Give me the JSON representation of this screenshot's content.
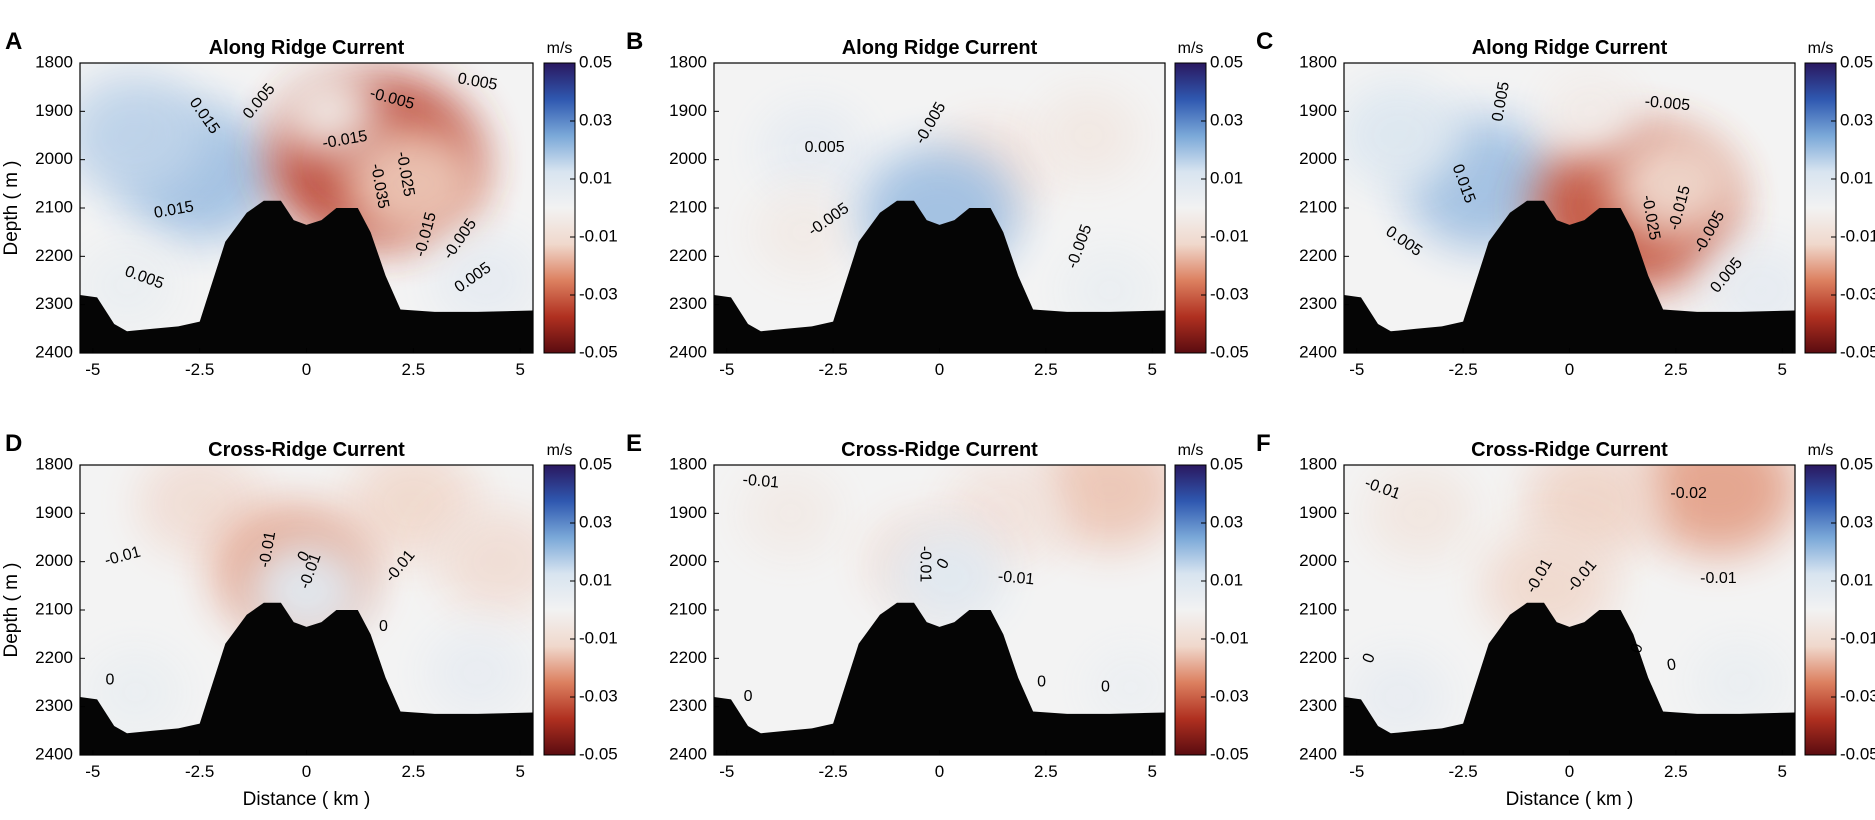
{
  "figure": {
    "colorbar_colors": [
      "#2a1860",
      "#2f58b0",
      "#7aa8d8",
      "#d8e4f0",
      "#f2f2f2",
      "#f0d8cc",
      "#dc8060",
      "#b03020",
      "#5a0c10"
    ],
    "terrain_color": "#050505"
  },
  "chart_data": [
    {
      "letter": "A",
      "type": "heatmap",
      "title": "Along Ridge Current",
      "xlabel": "",
      "ylabel": "Depth ( m )",
      "xlim": [
        -5.3,
        5.3
      ],
      "ylim": [
        2400,
        1800
      ],
      "x_ticks": [
        "-5",
        "-2.5",
        "0",
        "2.5",
        "5"
      ],
      "y_ticks": [
        "1800",
        "1900",
        "2000",
        "2100",
        "2200",
        "2300",
        "2400"
      ],
      "colorbar": {
        "unit": "m/s",
        "ticks": [
          "0.05",
          "0.03",
          "0.01",
          "-0.01",
          "-0.03",
          "-0.05"
        ]
      },
      "field": [
        {
          "x": -2.5,
          "y": 2030,
          "v": 0.02
        },
        {
          "x": -4.0,
          "y": 1950,
          "v": 0.016
        },
        {
          "x": -4.2,
          "y": 2260,
          "v": 0.004
        },
        {
          "x": 1.6,
          "y": 2000,
          "v": -0.035
        },
        {
          "x": 2.5,
          "y": 2050,
          "v": -0.015
        },
        {
          "x": 0.5,
          "y": 1900,
          "v": -0.004
        },
        {
          "x": 4.2,
          "y": 2250,
          "v": 0.006
        }
      ],
      "contour_labels": [
        {
          "text": "0.015",
          "x": -2.4,
          "y": 1910,
          "angle": 55
        },
        {
          "text": "0.005",
          "x": -1.1,
          "y": 1880,
          "angle": -50
        },
        {
          "text": "-0.005",
          "x": 2.0,
          "y": 1875,
          "angle": 15
        },
        {
          "text": "0.005",
          "x": 4.0,
          "y": 1840,
          "angle": 10
        },
        {
          "text": "-0.015",
          "x": 0.9,
          "y": 1960,
          "angle": -10
        },
        {
          "text": "-0.025",
          "x": 2.3,
          "y": 2030,
          "angle": 80
        },
        {
          "text": "-0.035",
          "x": 1.7,
          "y": 2055,
          "angle": 80
        },
        {
          "text": "-0.015",
          "x": 2.8,
          "y": 2155,
          "angle": -75
        },
        {
          "text": "-0.005",
          "x": 3.6,
          "y": 2165,
          "angle": -55
        },
        {
          "text": "0.005",
          "x": 3.9,
          "y": 2245,
          "angle": -35
        },
        {
          "text": "0.015",
          "x": -3.1,
          "y": 2105,
          "angle": -10
        },
        {
          "text": "0.005",
          "x": -3.8,
          "y": 2245,
          "angle": 20
        }
      ]
    },
    {
      "letter": "B",
      "type": "heatmap",
      "title": "Along Ridge Current",
      "xlabel": "",
      "ylabel": "",
      "xlim": [
        -5.3,
        5.3
      ],
      "ylim": [
        2400,
        1800
      ],
      "x_ticks": [
        "-5",
        "-2.5",
        "0",
        "2.5",
        "5"
      ],
      "y_ticks": [
        "1800",
        "1900",
        "2000",
        "2100",
        "2200",
        "2300",
        "2400"
      ],
      "colorbar": {
        "unit": "m/s",
        "ticks": [
          "0.05",
          "0.03",
          "0.01",
          "-0.01",
          "-0.03",
          "-0.05"
        ]
      },
      "field": [
        {
          "x": -3.0,
          "y": 1980,
          "v": 0.006
        },
        {
          "x": 1.2,
          "y": 2020,
          "v": -0.008
        },
        {
          "x": 3.5,
          "y": 1950,
          "v": -0.005
        },
        {
          "x": -3.2,
          "y": 2150,
          "v": -0.004
        },
        {
          "x": 4.0,
          "y": 2270,
          "v": 0.004
        },
        {
          "x": 0.0,
          "y": 2110,
          "v": 0.02
        }
      ],
      "contour_labels": [
        {
          "text": "0.005",
          "x": -2.7,
          "y": 1975,
          "angle": 0
        },
        {
          "text": "-0.005",
          "x": -0.2,
          "y": 1925,
          "angle": -60
        },
        {
          "text": "-0.005",
          "x": -2.6,
          "y": 2125,
          "angle": -35
        },
        {
          "text": "-0.005",
          "x": 3.3,
          "y": 2180,
          "angle": -70
        }
      ]
    },
    {
      "letter": "C",
      "type": "heatmap",
      "title": "Along Ridge Current",
      "xlabel": "",
      "ylabel": "",
      "xlim": [
        -5.3,
        5.3
      ],
      "ylim": [
        2400,
        1800
      ],
      "x_ticks": [
        "-5",
        "-2.5",
        "0",
        "2.5",
        "5"
      ],
      "y_ticks": [
        "1800",
        "1900",
        "2000",
        "2100",
        "2200",
        "2300",
        "2400"
      ],
      "colorbar": {
        "unit": "m/s",
        "ticks": [
          "0.05",
          "0.03",
          "0.01",
          "-0.01",
          "-0.03",
          "-0.05"
        ]
      },
      "field": [
        {
          "x": -2.0,
          "y": 2050,
          "v": 0.02
        },
        {
          "x": -4.0,
          "y": 1950,
          "v": 0.01
        },
        {
          "x": 1.5,
          "y": 2100,
          "v": -0.032
        },
        {
          "x": 2.5,
          "y": 2050,
          "v": -0.012
        },
        {
          "x": 4.5,
          "y": 2270,
          "v": 0.006
        },
        {
          "x": 0.5,
          "y": 1900,
          "v": -0.003
        }
      ],
      "contour_labels": [
        {
          "text": "0.005",
          "x": -1.6,
          "y": 1880,
          "angle": -80
        },
        {
          "text": "-0.005",
          "x": 2.3,
          "y": 1885,
          "angle": 5
        },
        {
          "text": "0.015",
          "x": -2.5,
          "y": 2050,
          "angle": 70
        },
        {
          "text": "-0.025",
          "x": 1.9,
          "y": 2120,
          "angle": 80
        },
        {
          "text": "-0.015",
          "x": 2.6,
          "y": 2100,
          "angle": -75
        },
        {
          "text": "-0.005",
          "x": 3.3,
          "y": 2150,
          "angle": -60
        },
        {
          "text": "0.005",
          "x": 3.7,
          "y": 2240,
          "angle": -50
        },
        {
          "text": "0.005",
          "x": -3.9,
          "y": 2170,
          "angle": 35
        }
      ]
    },
    {
      "letter": "D",
      "type": "heatmap",
      "title": "Cross-Ridge Current",
      "xlabel": "Distance ( km )",
      "ylabel": "Depth ( m )",
      "xlim": [
        -5.3,
        5.3
      ],
      "ylim": [
        2400,
        1800
      ],
      "x_ticks": [
        "-5",
        "-2.5",
        "0",
        "2.5",
        "5"
      ],
      "y_ticks": [
        "1800",
        "1900",
        "2000",
        "2100",
        "2200",
        "2300",
        "2400"
      ],
      "colorbar": {
        "unit": "m/s",
        "ticks": [
          "0.05",
          "0.03",
          "0.01",
          "-0.01",
          "-0.03",
          "-0.05"
        ]
      },
      "field": [
        {
          "x": -2.5,
          "y": 1880,
          "v": -0.01
        },
        {
          "x": 2.5,
          "y": 1880,
          "v": -0.012
        },
        {
          "x": 4.5,
          "y": 2000,
          "v": -0.01
        },
        {
          "x": -4.0,
          "y": 2270,
          "v": 0.004
        },
        {
          "x": 4.0,
          "y": 2230,
          "v": 0.005
        },
        {
          "x": -0.3,
          "y": 2020,
          "v": -0.02
        },
        {
          "x": 0.0,
          "y": 2060,
          "v": 0.008
        }
      ],
      "contour_labels": [
        {
          "text": "-0.01",
          "x": -4.3,
          "y": 1990,
          "angle": -15
        },
        {
          "text": "-0.01",
          "x": -0.9,
          "y": 1975,
          "angle": -80
        },
        {
          "text": "0",
          "x": -0.05,
          "y": 1990,
          "angle": -60
        },
        {
          "text": "-0.01",
          "x": 0.1,
          "y": 2020,
          "angle": -70
        },
        {
          "text": "-0.01",
          "x": 2.2,
          "y": 2010,
          "angle": -50
        },
        {
          "text": "0",
          "x": 1.8,
          "y": 2135,
          "angle": 0
        },
        {
          "text": "0",
          "x": -4.6,
          "y": 2245,
          "angle": 0
        }
      ]
    },
    {
      "letter": "E",
      "type": "heatmap",
      "title": "Cross-Ridge Current",
      "xlabel": "",
      "ylabel": "",
      "xlim": [
        -5.3,
        5.3
      ],
      "ylim": [
        2400,
        1800
      ],
      "x_ticks": [
        "-5",
        "-2.5",
        "0",
        "2.5",
        "5"
      ],
      "y_ticks": [
        "1800",
        "1900",
        "2000",
        "2100",
        "2200",
        "2300",
        "2400"
      ],
      "colorbar": {
        "unit": "m/s",
        "ticks": [
          "0.05",
          "0.03",
          "0.01",
          "-0.01",
          "-0.03",
          "-0.05"
        ]
      },
      "field": [
        {
          "x": 4.0,
          "y": 1850,
          "v": -0.015
        },
        {
          "x": 1.5,
          "y": 1900,
          "v": -0.008
        },
        {
          "x": -3.5,
          "y": 1900,
          "v": -0.004
        },
        {
          "x": -0.4,
          "y": 2000,
          "v": -0.008
        },
        {
          "x": 0.2,
          "y": 2030,
          "v": 0.008
        },
        {
          "x": 4.5,
          "y": 2260,
          "v": 0.003
        }
      ],
      "contour_labels": [
        {
          "text": "-0.01",
          "x": -4.2,
          "y": 1835,
          "angle": 5
        },
        {
          "text": "-0.01",
          "x": -0.35,
          "y": 2005,
          "angle": 90
        },
        {
          "text": "0",
          "x": 0.1,
          "y": 2005,
          "angle": -60
        },
        {
          "text": "-0.01",
          "x": 1.8,
          "y": 2035,
          "angle": 5
        },
        {
          "text": "0",
          "x": 2.4,
          "y": 2250,
          "angle": 0
        },
        {
          "text": "0",
          "x": 3.9,
          "y": 2260,
          "angle": 0
        },
        {
          "text": "0",
          "x": -4.5,
          "y": 2280,
          "angle": 0
        }
      ]
    },
    {
      "letter": "F",
      "type": "heatmap",
      "title": "Cross-Ridge Current",
      "xlabel": "Distance ( km )",
      "ylabel": "",
      "xlim": [
        -5.3,
        5.3
      ],
      "ylim": [
        2400,
        1800
      ],
      "x_ticks": [
        "-5",
        "-2.5",
        "0",
        "2.5",
        "5"
      ],
      "y_ticks": [
        "1800",
        "1900",
        "2000",
        "2100",
        "2200",
        "2300",
        "2400"
      ],
      "colorbar": {
        "unit": "m/s",
        "ticks": [
          "0.05",
          "0.03",
          "0.01",
          "-0.01",
          "-0.03",
          "-0.05"
        ]
      },
      "field": [
        {
          "x": 3.5,
          "y": 1850,
          "v": -0.02
        },
        {
          "x": 0.5,
          "y": 1880,
          "v": -0.013
        },
        {
          "x": -3.5,
          "y": 1900,
          "v": -0.006
        },
        {
          "x": -0.5,
          "y": 2050,
          "v": -0.012
        },
        {
          "x": -4.0,
          "y": 2280,
          "v": 0.005
        },
        {
          "x": 4.0,
          "y": 2250,
          "v": 0.004
        }
      ],
      "contour_labels": [
        {
          "text": "-0.01",
          "x": -4.4,
          "y": 1850,
          "angle": 20
        },
        {
          "text": "-0.02",
          "x": 2.8,
          "y": 1860,
          "angle": 0
        },
        {
          "text": "-0.01",
          "x": -0.7,
          "y": 2030,
          "angle": -60
        },
        {
          "text": "-0.01",
          "x": 0.3,
          "y": 2030,
          "angle": -50
        },
        {
          "text": "-0.01",
          "x": 3.5,
          "y": 2035,
          "angle": 0
        },
        {
          "text": "0",
          "x": -4.7,
          "y": 2200,
          "angle": -70
        },
        {
          "text": "0",
          "x": 2.4,
          "y": 2215,
          "angle": -10
        },
        {
          "text": "0",
          "x": 1.6,
          "y": 2180,
          "angle": -70
        }
      ]
    }
  ]
}
